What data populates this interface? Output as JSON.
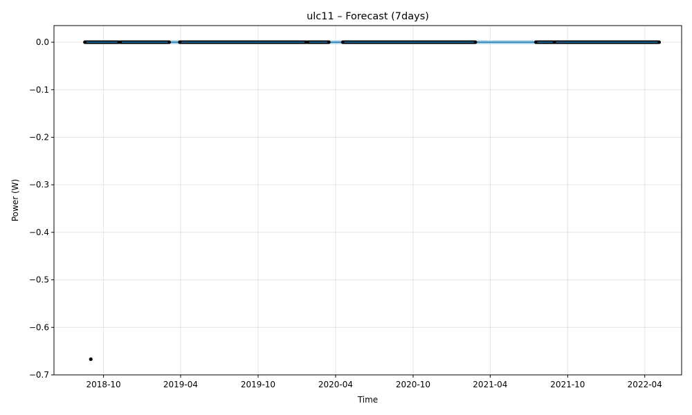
{
  "chart_data": {
    "type": "line",
    "title": "ulc11 – Forecast (7days)",
    "xlabel": "Time",
    "ylabel": "Power (W)",
    "x_axis_type": "date",
    "xlim": [
      "2018-06-06",
      "2022-06-27"
    ],
    "ylim": [
      -0.7,
      0.035
    ],
    "grid": true,
    "x_ticks": [
      {
        "date": "2018-10-01",
        "label": "2018-10"
      },
      {
        "date": "2019-04-01",
        "label": "2019-04"
      },
      {
        "date": "2019-10-01",
        "label": "2019-10"
      },
      {
        "date": "2020-04-01",
        "label": "2020-04"
      },
      {
        "date": "2020-10-01",
        "label": "2020-10"
      },
      {
        "date": "2021-04-01",
        "label": "2021-04"
      },
      {
        "date": "2021-10-01",
        "label": "2021-10"
      },
      {
        "date": "2022-04-01",
        "label": "2022-04"
      }
    ],
    "y_ticks": [
      {
        "value": 0.0,
        "label": "0.0"
      },
      {
        "value": -0.1,
        "label": "−0.1"
      },
      {
        "value": -0.2,
        "label": "−0.2"
      },
      {
        "value": -0.3,
        "label": "−0.3"
      },
      {
        "value": -0.4,
        "label": "−0.4"
      },
      {
        "value": -0.5,
        "label": "−0.5"
      },
      {
        "value": -0.6,
        "label": "−0.6"
      },
      {
        "value": -0.7,
        "label": "−0.7"
      }
    ],
    "forecast": {
      "color": "#1f77b4",
      "band_color": "#9ecae1",
      "x": [
        "2018-08-16",
        "2022-05-05"
      ],
      "y": [
        0.0,
        0.0
      ],
      "lower": [
        -0.004,
        -0.004
      ],
      "upper": [
        0.004,
        0.004
      ]
    },
    "observed_segments": {
      "color": "#000000",
      "y": 0.0,
      "ranges": [
        [
          "2018-08-18",
          "2018-11-06"
        ],
        [
          "2018-11-10",
          "2019-03-05"
        ],
        [
          "2019-03-30",
          "2020-01-22"
        ],
        [
          "2020-01-26",
          "2020-03-16"
        ],
        [
          "2020-04-18",
          "2021-02-25"
        ],
        [
          "2021-07-18",
          "2021-08-30"
        ],
        [
          "2021-08-31",
          "2022-05-05"
        ]
      ]
    },
    "outliers": [
      {
        "x": "2018-09-01",
        "y": -0.667
      }
    ]
  }
}
